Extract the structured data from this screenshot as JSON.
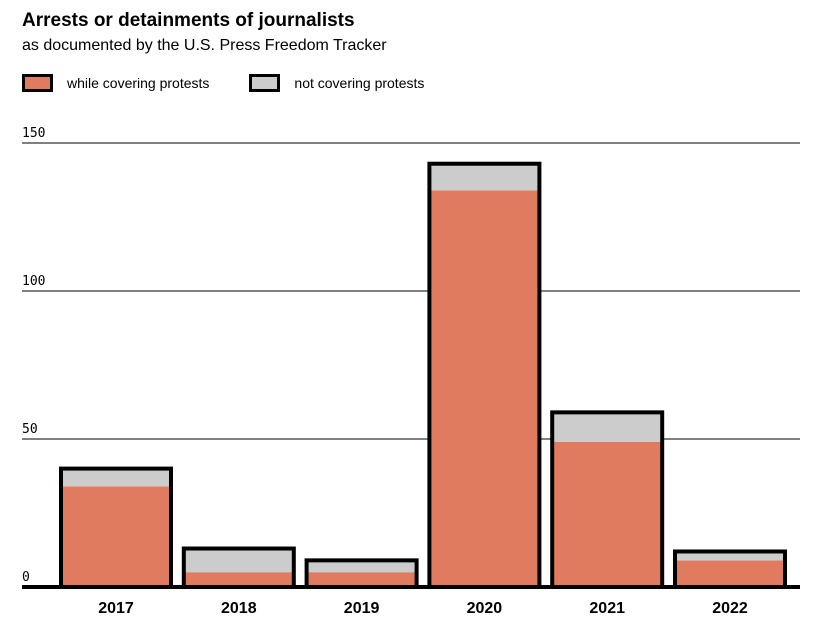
{
  "colors": {
    "protests": "#e07b5f",
    "not_protests": "#cccccc",
    "outline": "#000000"
  },
  "chart_data": {
    "type": "bar",
    "stacked": true,
    "title": "Arrests or detainments of journalists",
    "subtitle": "as documented by the U.S. Press Freedom Tracker",
    "categories": [
      "2017",
      "2018",
      "2019",
      "2020",
      "2021",
      "2022"
    ],
    "series": [
      {
        "name": "while covering protests",
        "values": [
          34,
          5,
          5,
          134,
          49,
          9
        ]
      },
      {
        "name": "not covering protests",
        "values": [
          6,
          8,
          4,
          9,
          10,
          3
        ]
      }
    ],
    "yticks": [
      "0",
      "50",
      "100",
      "150"
    ],
    "ylim": [
      0,
      150
    ],
    "grid": true,
    "legend": "top-left"
  }
}
